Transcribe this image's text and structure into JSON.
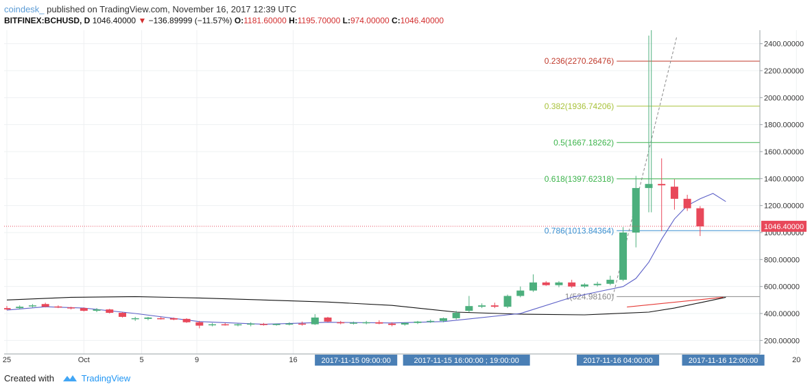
{
  "header": {
    "author": "coindesk_",
    "published": " published on TradingView.com, November 16, 2017 12:39 UTC",
    "symbol": "BITFINEX:BCHUSD, D",
    "last": "1046.40000",
    "change_arrow": "▼",
    "change": "−136.89999 (−11.57%)",
    "open_label": "O:",
    "open": "1181.60000",
    "high_label": "H:",
    "high": "1195.70000",
    "low_label": "L:",
    "low": "974.00000",
    "close_label": "C:",
    "close": "1046.40000"
  },
  "footer": {
    "created_with": "Created with",
    "brand": "TradingView"
  },
  "colors": {
    "up": "#4caf7d",
    "down": "#e8485a",
    "ma_fast": "#5b5fc7",
    "ma_slow": "#111111",
    "fib_0236": "#c0392b",
    "fib_0382": "#a8c23a",
    "fib_05": "#3cb44b",
    "fib_0618": "#3cb44b",
    "fib_0786": "#3a8fd0",
    "fib_1": "#888888",
    "time_label_bg": "#4a7fb5",
    "price_badge": "#e8485a"
  },
  "chart_data": {
    "type": "candlestick",
    "ylim": [
      100,
      2500
    ],
    "y_ticks": [
      200,
      400,
      600,
      800,
      1000,
      1200,
      1400,
      1600,
      1800,
      2000,
      2200,
      2400
    ],
    "y_tick_labels": [
      "200.00000",
      "400.00000",
      "600.00000",
      "800.00000",
      "1000.00000",
      "1200.00000",
      "1400.00000",
      "1600.00000",
      "1800.00000",
      "2000.00000",
      "2200.00000",
      "2400.00000"
    ],
    "x_labels": [
      {
        "i": 0,
        "text": "25"
      },
      {
        "i": 6,
        "text": "Oct"
      },
      {
        "i": 10.5,
        "text": "5"
      },
      {
        "i": 14.8,
        "text": "9"
      },
      {
        "i": 22.3,
        "text": "16"
      },
      {
        "i": 61.5,
        "text": "20"
      }
    ],
    "time_labels": [
      {
        "i": 27.2,
        "text": "2017-11-15 09:00:00"
      },
      {
        "i": 35.8,
        "text": "2017-11-15 16:00:00 ; 19:00:00"
      },
      {
        "i": 47.6,
        "text": "2017-11-16 04:00:00"
      },
      {
        "i": 55.8,
        "text": "2017-11-16 12:00:00"
      }
    ],
    "last_price": 1046.4,
    "last_price_label": "1046.40000",
    "candles": [
      {
        "o": 440,
        "h": 455,
        "l": 425,
        "c": 430
      },
      {
        "o": 440,
        "h": 460,
        "l": 430,
        "c": 450
      },
      {
        "o": 455,
        "h": 470,
        "l": 445,
        "c": 460
      },
      {
        "o": 470,
        "h": 480,
        "l": 445,
        "c": 450
      },
      {
        "o": 452,
        "h": 460,
        "l": 440,
        "c": 445
      },
      {
        "o": 445,
        "h": 450,
        "l": 430,
        "c": 440
      },
      {
        "o": 440,
        "h": 445,
        "l": 415,
        "c": 420
      },
      {
        "o": 420,
        "h": 440,
        "l": 410,
        "c": 430
      },
      {
        "o": 430,
        "h": 435,
        "l": 400,
        "c": 405
      },
      {
        "o": 405,
        "h": 410,
        "l": 370,
        "c": 375
      },
      {
        "o": 360,
        "h": 375,
        "l": 345,
        "c": 365
      },
      {
        "o": 360,
        "h": 375,
        "l": 350,
        "c": 370
      },
      {
        "o": 365,
        "h": 375,
        "l": 355,
        "c": 360
      },
      {
        "o": 365,
        "h": 370,
        "l": 350,
        "c": 355
      },
      {
        "o": 360,
        "h": 365,
        "l": 330,
        "c": 335
      },
      {
        "o": 335,
        "h": 345,
        "l": 290,
        "c": 310
      },
      {
        "o": 315,
        "h": 330,
        "l": 305,
        "c": 320
      },
      {
        "o": 320,
        "h": 330,
        "l": 310,
        "c": 315
      },
      {
        "o": 315,
        "h": 325,
        "l": 305,
        "c": 320
      },
      {
        "o": 320,
        "h": 335,
        "l": 305,
        "c": 325
      },
      {
        "o": 322,
        "h": 330,
        "l": 310,
        "c": 318
      },
      {
        "o": 318,
        "h": 325,
        "l": 310,
        "c": 322
      },
      {
        "o": 320,
        "h": 335,
        "l": 312,
        "c": 325
      },
      {
        "o": 325,
        "h": 340,
        "l": 310,
        "c": 318
      },
      {
        "o": 320,
        "h": 395,
        "l": 315,
        "c": 370
      },
      {
        "o": 370,
        "h": 375,
        "l": 335,
        "c": 340
      },
      {
        "o": 335,
        "h": 345,
        "l": 320,
        "c": 330
      },
      {
        "o": 330,
        "h": 340,
        "l": 318,
        "c": 332
      },
      {
        "o": 332,
        "h": 345,
        "l": 320,
        "c": 335
      },
      {
        "o": 335,
        "h": 350,
        "l": 320,
        "c": 325
      },
      {
        "o": 325,
        "h": 335,
        "l": 305,
        "c": 315
      },
      {
        "o": 318,
        "h": 335,
        "l": 310,
        "c": 330
      },
      {
        "o": 330,
        "h": 345,
        "l": 322,
        "c": 340
      },
      {
        "o": 340,
        "h": 355,
        "l": 330,
        "c": 345
      },
      {
        "o": 345,
        "h": 370,
        "l": 335,
        "c": 365
      },
      {
        "o": 365,
        "h": 420,
        "l": 355,
        "c": 405
      },
      {
        "o": 420,
        "h": 530,
        "l": 410,
        "c": 455
      },
      {
        "o": 450,
        "h": 475,
        "l": 440,
        "c": 460
      },
      {
        "o": 460,
        "h": 480,
        "l": 440,
        "c": 450
      },
      {
        "o": 450,
        "h": 540,
        "l": 440,
        "c": 530
      },
      {
        "o": 530,
        "h": 600,
        "l": 520,
        "c": 570
      },
      {
        "o": 570,
        "h": 690,
        "l": 560,
        "c": 630
      },
      {
        "o": 630,
        "h": 640,
        "l": 605,
        "c": 610
      },
      {
        "o": 610,
        "h": 640,
        "l": 595,
        "c": 630
      },
      {
        "o": 630,
        "h": 650,
        "l": 590,
        "c": 600
      },
      {
        "o": 600,
        "h": 625,
        "l": 590,
        "c": 615
      },
      {
        "o": 610,
        "h": 635,
        "l": 600,
        "c": 620
      },
      {
        "o": 620,
        "h": 680,
        "l": 610,
        "c": 650
      },
      {
        "o": 650,
        "h": 1040,
        "l": 640,
        "c": 1000
      },
      {
        "o": 1000,
        "h": 1420,
        "l": 890,
        "c": 1330
      },
      {
        "o": 1330,
        "h": 2460,
        "l": 1150,
        "c": 1360
      },
      {
        "o": 1360,
        "h": 1550,
        "l": 1010,
        "c": 1350
      },
      {
        "o": 1340,
        "h": 1395,
        "l": 1170,
        "c": 1250
      },
      {
        "o": 1250,
        "h": 1280,
        "l": 1160,
        "c": 1180
      },
      {
        "o": 1180,
        "h": 1196,
        "l": 974,
        "c": 1046
      }
    ],
    "ma_fast": [
      [
        0,
        425
      ],
      [
        3,
        450
      ],
      [
        6,
        440
      ],
      [
        10,
        400
      ],
      [
        15,
        340
      ],
      [
        20,
        320
      ],
      [
        25,
        335
      ],
      [
        30,
        330
      ],
      [
        34,
        340
      ],
      [
        36,
        360
      ],
      [
        40,
        400
      ],
      [
        44,
        520
      ],
      [
        46,
        560
      ],
      [
        48,
        600
      ],
      [
        49,
        660
      ],
      [
        50,
        780
      ],
      [
        51,
        950
      ],
      [
        52,
        1100
      ],
      [
        53,
        1200
      ],
      [
        54,
        1250
      ],
      [
        55,
        1290
      ],
      [
        56,
        1230
      ]
    ],
    "ma_slow": [
      [
        0,
        500
      ],
      [
        5,
        520
      ],
      [
        10,
        525
      ],
      [
        15,
        515
      ],
      [
        20,
        500
      ],
      [
        25,
        485
      ],
      [
        30,
        460
      ],
      [
        35,
        410
      ],
      [
        40,
        395
      ],
      [
        45,
        390
      ],
      [
        50,
        410
      ],
      [
        52,
        440
      ],
      [
        54,
        480
      ],
      [
        56,
        520
      ]
    ],
    "fib_levels": [
      {
        "label": "0.236(2270.26476)",
        "value": 2270.26476,
        "color": "#c0392b"
      },
      {
        "label": "0.382(1936.74206)",
        "value": 1936.74206,
        "color": "#a8c23a"
      },
      {
        "label": "0.5(1667.18262)",
        "value": 1667.18262,
        "color": "#3cb44b"
      },
      {
        "label": "0.618(1397.62318)",
        "value": 1397.62318,
        "color": "#3cb44b"
      },
      {
        "label": "0.786(1013.84364)",
        "value": 1013.84364,
        "color": "#3a8fd0"
      },
      {
        "label": "1(524.98160)",
        "value": 524.9816,
        "color": "#888888"
      }
    ],
    "fib_start_i": 47.5,
    "trend_dashed": [
      [
        47.2,
        524.98
      ],
      [
        52.2,
        2460
      ]
    ],
    "red_trend": [
      [
        48.3,
        448
      ],
      [
        55.8,
        520
      ]
    ],
    "vline_i": 50.2
  }
}
